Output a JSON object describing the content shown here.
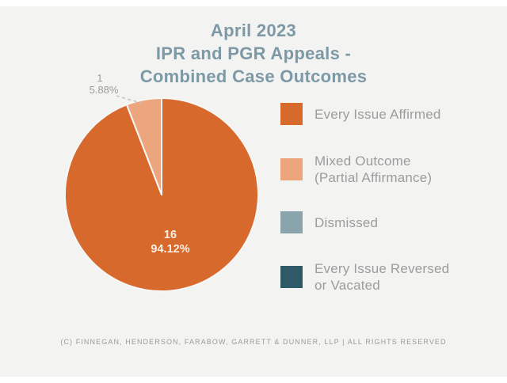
{
  "page": {
    "background": "#ffffff",
    "panel_background": "#f3f3f1"
  },
  "title": {
    "line1": "April 2023",
    "line2": "IPR and PGR Appeals -",
    "line3": "Combined Case Outcomes",
    "color": "#7e99a6"
  },
  "pie": {
    "outside_label": {
      "count": "1",
      "percent": "5.88%"
    },
    "inside_label": {
      "count": "16",
      "percent": "94.12%"
    }
  },
  "legend": {
    "items": [
      {
        "line1": "Every Issue Affirmed",
        "color": "#d8692c"
      },
      {
        "line1": "Mixed Outcome",
        "line2": "(Partial Affirmance)",
        "color": "#eca57d"
      },
      {
        "line1": "Dismissed",
        "color": "#8aa4ae"
      },
      {
        "line1": "Every Issue Reversed",
        "line2": "or Vacated",
        "color": "#2e5a68"
      }
    ]
  },
  "footer": {
    "text": "(C) FINNEGAN, HENDERSON, FARABOW, GARRETT & DUNNER, LLP | ALL RIGHTS RESERVED"
  },
  "chart_data": {
    "type": "pie",
    "title": "April 2023 IPR and PGR Appeals - Combined Case Outcomes",
    "slices": [
      {
        "label": "Every Issue Affirmed",
        "count": 16,
        "percent": 94.12,
        "color": "#d8692c"
      },
      {
        "label": "Mixed Outcome (Partial Affirmance)",
        "count": 1,
        "percent": 5.88,
        "color": "#eca57d"
      },
      {
        "label": "Dismissed",
        "count": 0,
        "percent": 0,
        "color": "#8aa4ae"
      },
      {
        "label": "Every Issue Reversed or Vacated",
        "count": 0,
        "percent": 0,
        "color": "#2e5a68"
      }
    ],
    "start_angle_deg": 0,
    "direction": "clockwise",
    "legend_position": "right",
    "data_labels": "count and percent"
  }
}
